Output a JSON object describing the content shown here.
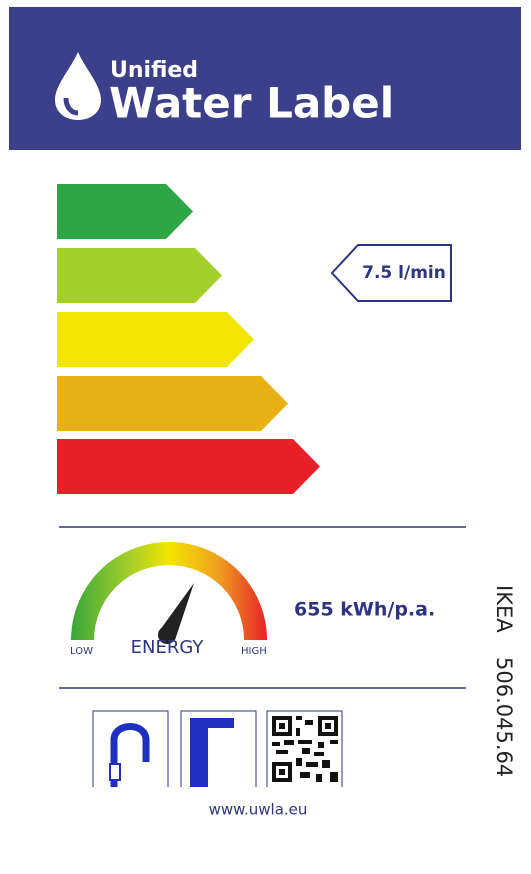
{
  "header": {
    "subtitle": "Unified",
    "title": "Water Label"
  },
  "rating": {
    "flow": "7.5 l/min"
  },
  "energy": {
    "low": "LOW",
    "label": "ENERGY",
    "high": "HIGH",
    "consumption": "655 kWh/p.a."
  },
  "product": {
    "brand": "IKEA",
    "article": "506.045.64"
  },
  "footer": {
    "url": "www.uwla.eu"
  }
}
